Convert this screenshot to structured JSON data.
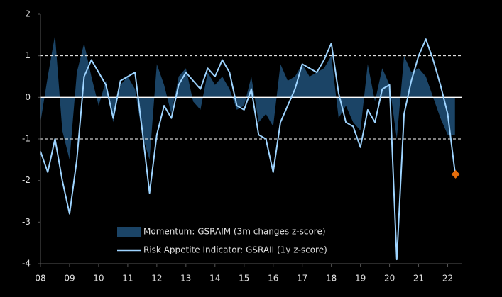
{
  "chart_data": {
    "type": "line",
    "x": [
      2008.0,
      2008.25,
      2008.5,
      2008.75,
      2009.0,
      2009.25,
      2009.5,
      2009.75,
      2010.0,
      2010.25,
      2010.5,
      2010.75,
      2011.0,
      2011.25,
      2011.5,
      2011.75,
      2012.0,
      2012.25,
      2012.5,
      2012.75,
      2013.0,
      2013.25,
      2013.5,
      2013.75,
      2014.0,
      2014.25,
      2014.5,
      2014.75,
      2015.0,
      2015.25,
      2015.5,
      2015.75,
      2016.0,
      2016.25,
      2016.5,
      2016.75,
      2017.0,
      2017.25,
      2017.5,
      2017.75,
      2018.0,
      2018.25,
      2018.5,
      2018.75,
      2019.0,
      2019.25,
      2019.5,
      2019.75,
      2020.0,
      2020.25,
      2020.5,
      2020.75,
      2021.0,
      2021.25,
      2021.5,
      2021.75,
      2022.0,
      2022.25
    ],
    "series": [
      {
        "name": "Momentum: GSRAIM (3m changes z-score)",
        "kind": "area",
        "color": "#1b4466",
        "values": [
          -0.6,
          0.5,
          1.5,
          -0.8,
          -1.5,
          0.6,
          1.3,
          0.5,
          -0.2,
          0.4,
          -0.6,
          0.3,
          0.5,
          0.2,
          -0.9,
          -1.5,
          0.8,
          0.3,
          -0.4,
          0.5,
          0.7,
          -0.1,
          -0.3,
          0.6,
          0.3,
          0.5,
          0.2,
          -0.3,
          -0.2,
          0.5,
          -0.6,
          -0.4,
          -0.7,
          0.8,
          0.4,
          0.5,
          0.8,
          0.5,
          0.6,
          0.7,
          1.0,
          -0.5,
          -0.2,
          -0.6,
          -0.8,
          0.8,
          -0.1,
          0.7,
          0.3,
          -1.0,
          1.0,
          0.6,
          0.7,
          0.5,
          0.0,
          -0.5,
          -0.9,
          -0.9
        ]
      },
      {
        "name": "Risk Appetite Indicator: GSRAII (1y z-score)",
        "kind": "line",
        "color": "#9ed4ff",
        "values": [
          -1.3,
          -1.8,
          -1.0,
          -2.0,
          -2.8,
          -1.5,
          0.5,
          0.9,
          0.6,
          0.3,
          -0.5,
          0.4,
          0.5,
          0.6,
          -0.8,
          -2.3,
          -0.9,
          -0.2,
          -0.5,
          0.3,
          0.6,
          0.4,
          0.2,
          0.7,
          0.5,
          0.9,
          0.6,
          -0.2,
          -0.3,
          0.2,
          -0.9,
          -1.0,
          -1.8,
          -0.6,
          -0.2,
          0.2,
          0.8,
          0.7,
          0.6,
          0.9,
          1.3,
          0.1,
          -0.6,
          -0.7,
          -1.2,
          -0.3,
          -0.6,
          0.2,
          0.3,
          -3.9,
          -0.4,
          0.4,
          1.0,
          1.4,
          0.9,
          0.3,
          -0.4,
          -1.8
        ]
      }
    ],
    "highlight": {
      "x": 2022.27,
      "y": -1.85,
      "color": "#e46c0a"
    },
    "xlim": [
      2008,
      2022.5
    ],
    "xticks": [
      {
        "value": 2008,
        "label": "08"
      },
      {
        "value": 2009,
        "label": "09"
      },
      {
        "value": 2010,
        "label": "10"
      },
      {
        "value": 2011,
        "label": "11"
      },
      {
        "value": 2012,
        "label": "12"
      },
      {
        "value": 2013,
        "label": "13"
      },
      {
        "value": 2014,
        "label": "14"
      },
      {
        "value": 2015,
        "label": "15"
      },
      {
        "value": 2016,
        "label": "16"
      },
      {
        "value": 2017,
        "label": "17"
      },
      {
        "value": 2018,
        "label": "18"
      },
      {
        "value": 2019,
        "label": "19"
      },
      {
        "value": 2020,
        "label": "20"
      },
      {
        "value": 2021,
        "label": "21"
      },
      {
        "value": 2022,
        "label": "22"
      }
    ],
    "ylim": [
      -4,
      2
    ],
    "yticks": [
      2,
      1,
      0,
      -1,
      -2,
      -3,
      -4
    ],
    "reference_lines": [
      {
        "value": 1,
        "dashed": true
      },
      {
        "value": 0,
        "dashed": false
      },
      {
        "value": -1,
        "dashed": true
      }
    ],
    "legend": "lower center"
  }
}
